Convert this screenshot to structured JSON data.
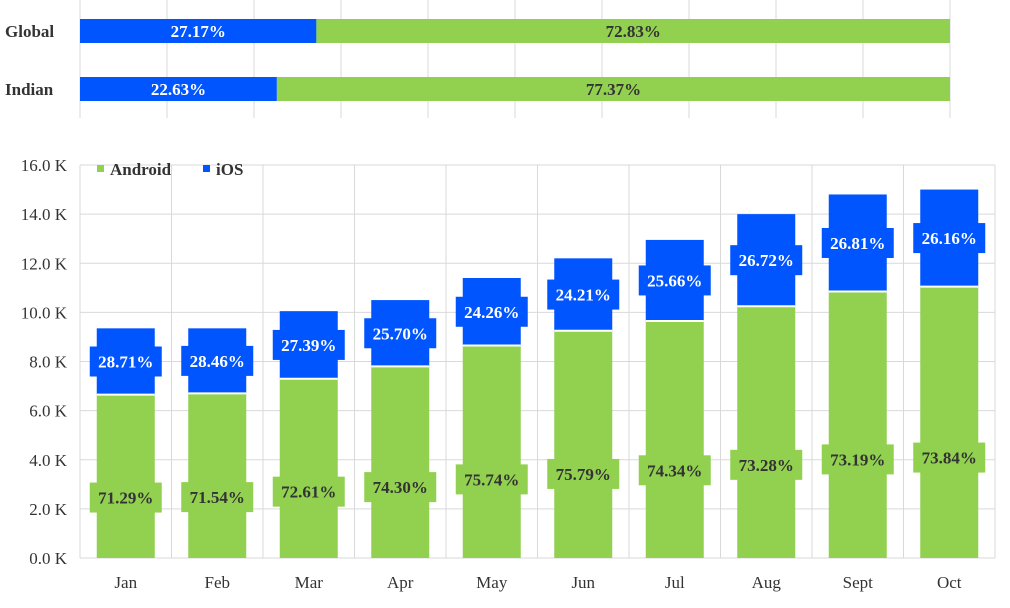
{
  "chart_data": [
    {
      "type": "bar",
      "orientation": "horizontal",
      "stacked": "100%",
      "categories": [
        "Global",
        "Indian"
      ],
      "series": [
        {
          "name": "iOS",
          "values": [
            27.17,
            22.63
          ],
          "labels": [
            "27.17%",
            "22.63%"
          ]
        },
        {
          "name": "Android",
          "values": [
            72.83,
            77.37
          ],
          "labels": [
            "72.83%",
            "77.37%"
          ]
        }
      ],
      "grid": true
    },
    {
      "type": "bar",
      "stacked": true,
      "categories": [
        "Jan",
        "Feb",
        "Mar",
        "Apr",
        "May",
        "Jun",
        "Jul",
        "Aug",
        "Sept",
        "Oct"
      ],
      "series": [
        {
          "name": "Android",
          "values": [
            6650,
            6700,
            7300,
            7800,
            8650,
            9250,
            9650,
            10250,
            10850,
            11050
          ],
          "labels": [
            "71.29%",
            "71.54%",
            "72.61%",
            "74.30%",
            "75.74%",
            "75.79%",
            "74.34%",
            "73.28%",
            "73.19%",
            "73.84%"
          ]
        },
        {
          "name": "iOS",
          "values": [
            2700,
            2650,
            2750,
            2700,
            2750,
            2950,
            3300,
            3750,
            3950,
            3950
          ],
          "labels": [
            "28.71%",
            "28.46%",
            "27.39%",
            "25.70%",
            "24.26%",
            "24.21%",
            "25.66%",
            "26.72%",
            "26.81%",
            "26.16%"
          ]
        }
      ],
      "yticks": [
        "0.0 K",
        "2.0 K",
        "4.0 K",
        "6.0 K",
        "8.0 K",
        "10.0 K",
        "12.0 K",
        "14.0 K",
        "16.0 K"
      ],
      "ylim": [
        0,
        16000
      ],
      "legend": "top-left",
      "grid": true
    }
  ],
  "colors": {
    "android": "#92d050",
    "ios": "#0055ff",
    "grid": "#d9d9d9",
    "text": "#333333"
  }
}
